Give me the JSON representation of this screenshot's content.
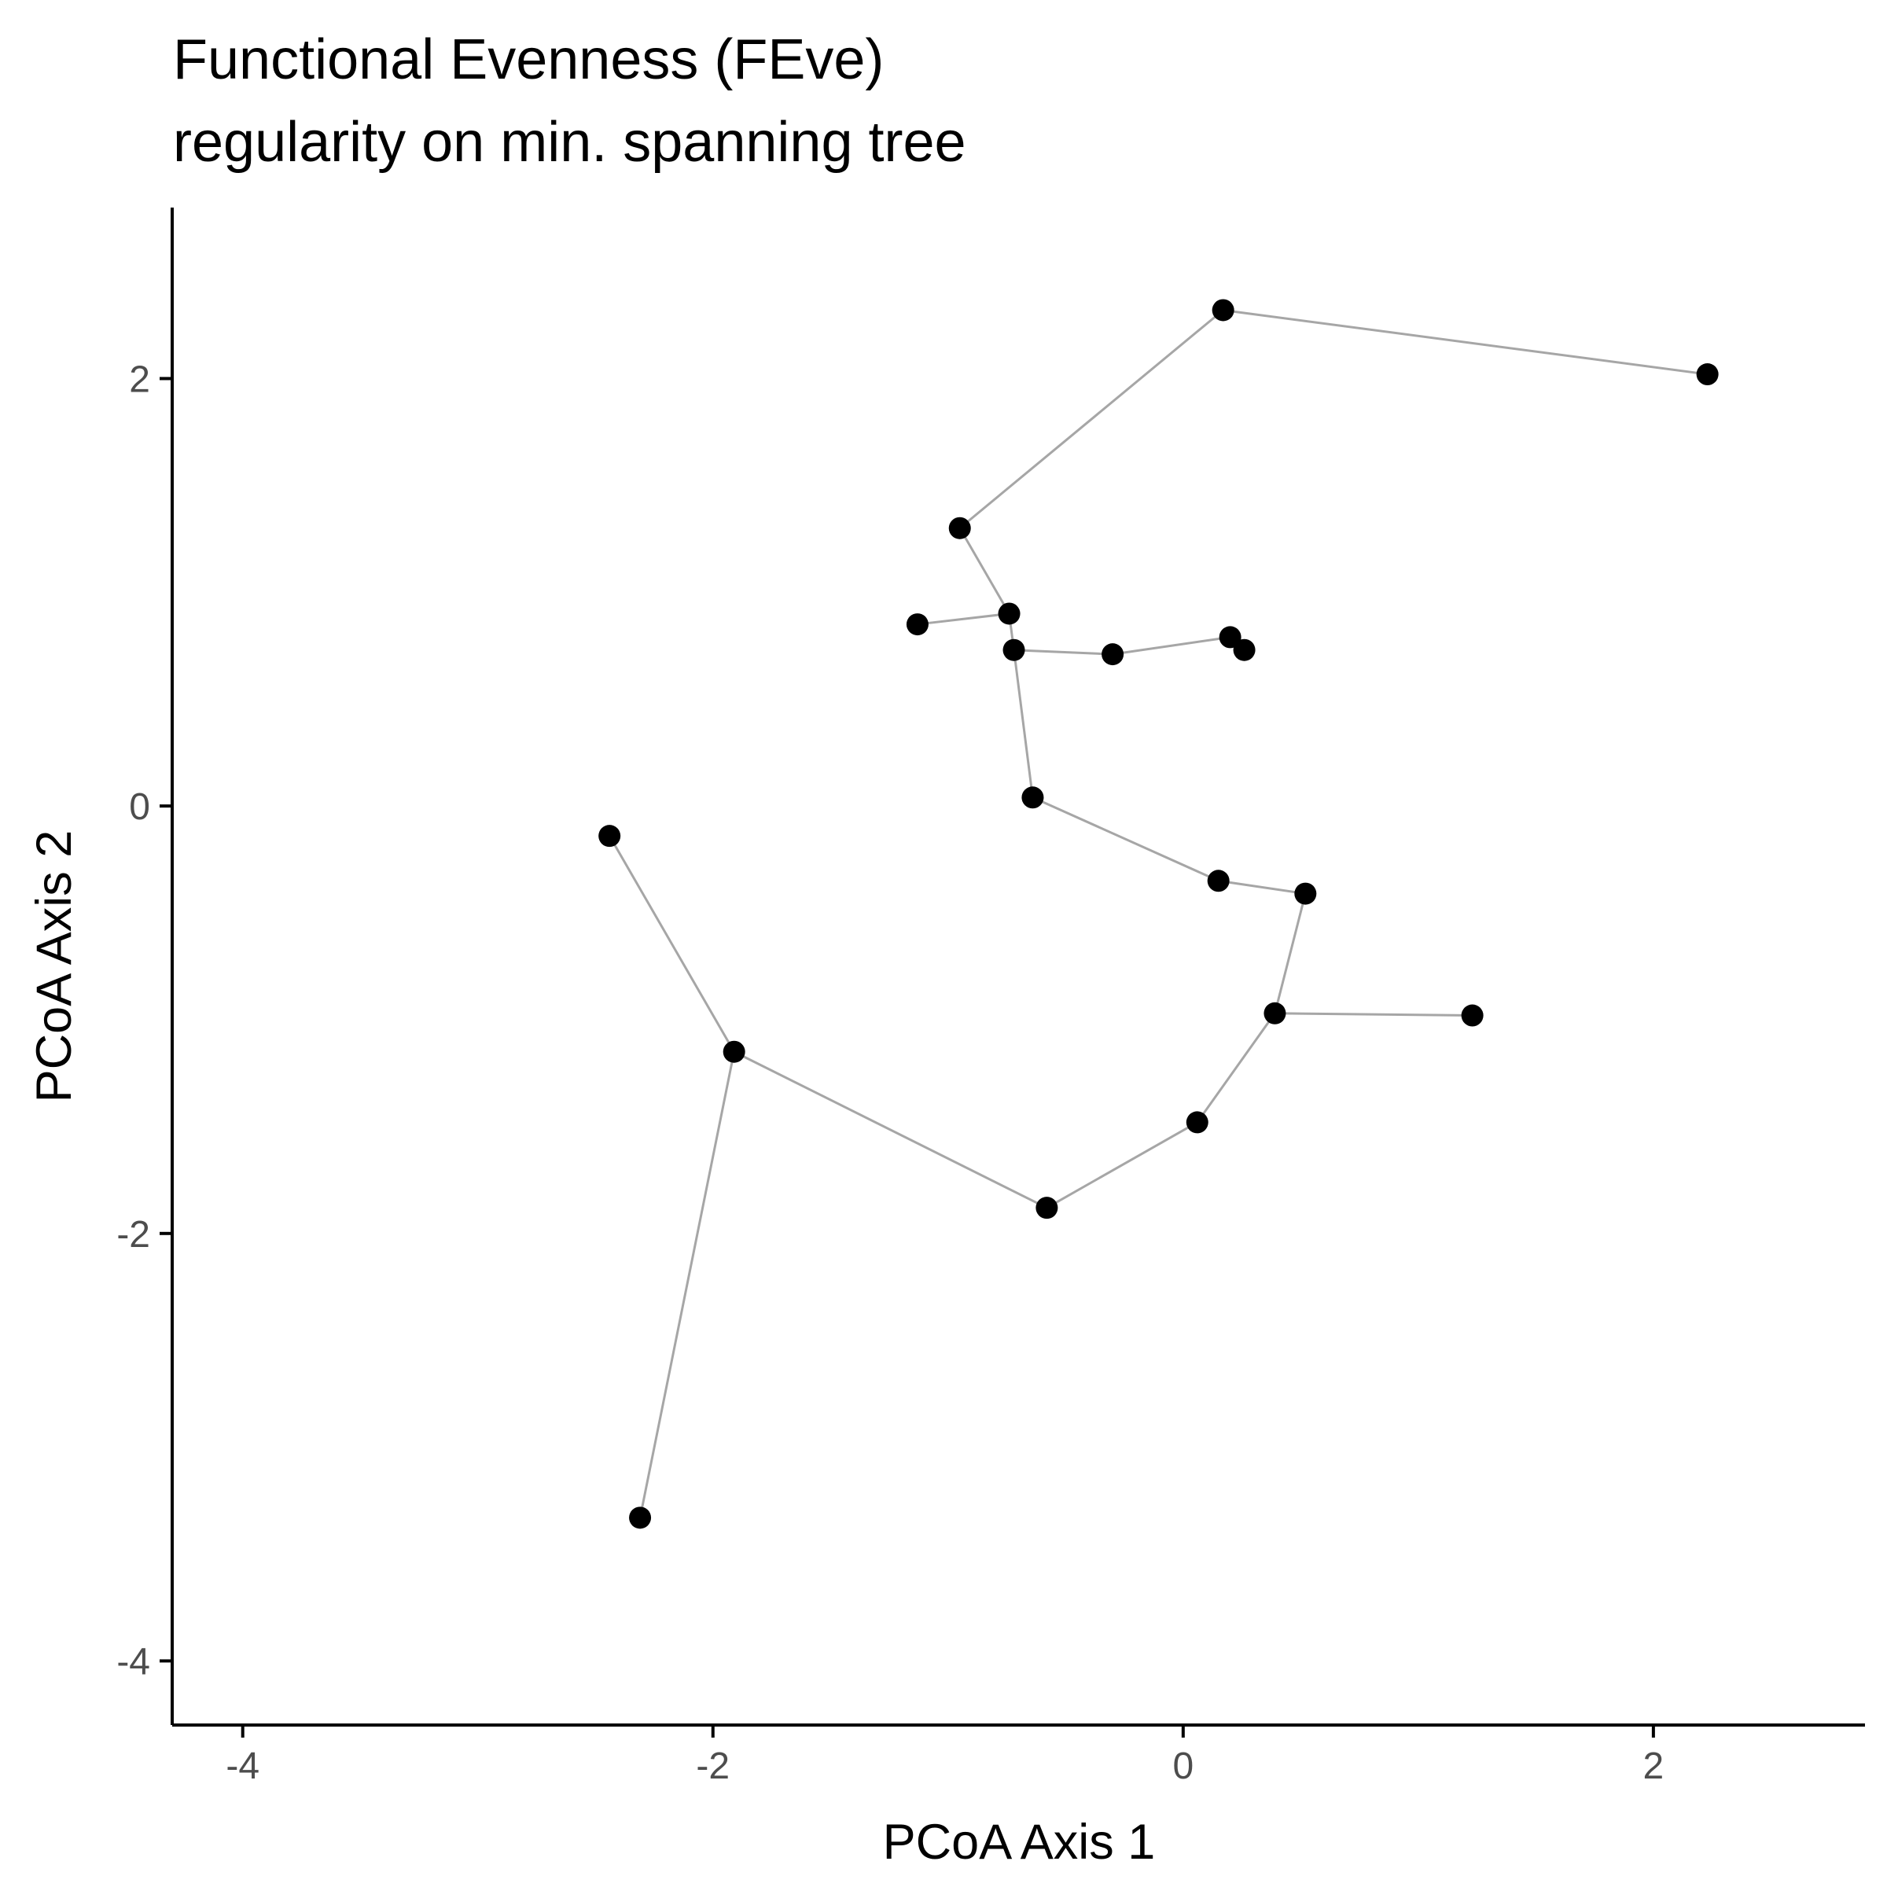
{
  "chart_data": {
    "type": "scatter",
    "title": "Functional Evenness (FEve)",
    "subtitle": "regularity on min. spanning tree",
    "xlabel": "PCoA Axis 1",
    "ylabel": "PCoA Axis 2",
    "xlim": [
      -4.3,
      2.9
    ],
    "ylim": [
      -4.3,
      2.8
    ],
    "xticks": [
      -4,
      -2,
      0,
      2
    ],
    "yticks": [
      -4,
      -2,
      0,
      2
    ],
    "xtick_labels": [
      "-4",
      "-2",
      "0",
      "2"
    ],
    "ytick_labels": [
      "-4",
      "-2",
      "0",
      "2"
    ],
    "grid": false,
    "colors": {
      "point": "#000000",
      "edge": "#a6a6a6",
      "axis": "#000000",
      "tick_label": "#4d4d4d"
    },
    "points": [
      {
        "x": 0.17,
        "y": 2.32
      },
      {
        "x": 2.23,
        "y": 2.02
      },
      {
        "x": -0.95,
        "y": 1.3
      },
      {
        "x": -0.74,
        "y": 0.9
      },
      {
        "x": -1.13,
        "y": 0.85
      },
      {
        "x": -0.72,
        "y": 0.73
      },
      {
        "x": -0.3,
        "y": 0.71
      },
      {
        "x": 0.2,
        "y": 0.79
      },
      {
        "x": 0.26,
        "y": 0.73
      },
      {
        "x": -0.64,
        "y": 0.04
      },
      {
        "x": 0.15,
        "y": -0.35
      },
      {
        "x": 0.52,
        "y": -0.41
      },
      {
        "x": 0.39,
        "y": -0.97
      },
      {
        "x": 1.23,
        "y": -0.98
      },
      {
        "x": 0.06,
        "y": -1.48
      },
      {
        "x": -0.58,
        "y": -1.88
      },
      {
        "x": -1.91,
        "y": -1.15
      },
      {
        "x": -2.44,
        "y": -0.14
      },
      {
        "x": -2.31,
        "y": -3.33
      }
    ],
    "edges": [
      [
        0,
        1
      ],
      [
        0,
        2
      ],
      [
        2,
        3
      ],
      [
        3,
        4
      ],
      [
        3,
        5
      ],
      [
        5,
        6
      ],
      [
        6,
        7
      ],
      [
        5,
        9
      ],
      [
        9,
        10
      ],
      [
        10,
        11
      ],
      [
        11,
        12
      ],
      [
        12,
        13
      ],
      [
        12,
        14
      ],
      [
        14,
        15
      ],
      [
        15,
        16
      ],
      [
        16,
        17
      ],
      [
        16,
        18
      ]
    ]
  }
}
